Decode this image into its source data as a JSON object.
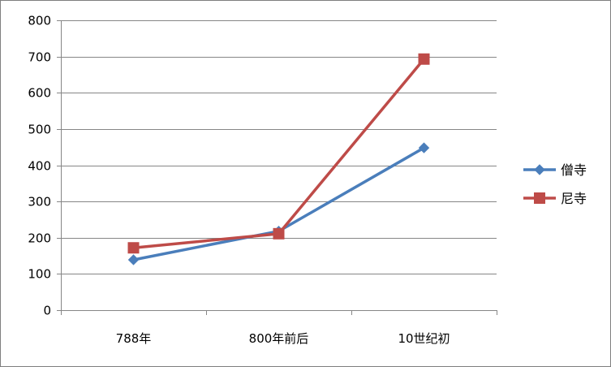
{
  "chart_data": {
    "type": "line",
    "categories": [
      "788年",
      "800年前后",
      "10世纪初"
    ],
    "series": [
      {
        "name": "僧寺",
        "values": [
          139,
          218,
          448
        ],
        "color": "#4a7ebb",
        "marker": "diamond"
      },
      {
        "name": "尼寺",
        "values": [
          172,
          211,
          693
        ],
        "color": "#be4b48",
        "marker": "square"
      }
    ],
    "ylim": [
      0,
      800
    ],
    "yticks": [
      0,
      100,
      200,
      300,
      400,
      500,
      600,
      700,
      800
    ],
    "grid": true,
    "legend": "right"
  }
}
